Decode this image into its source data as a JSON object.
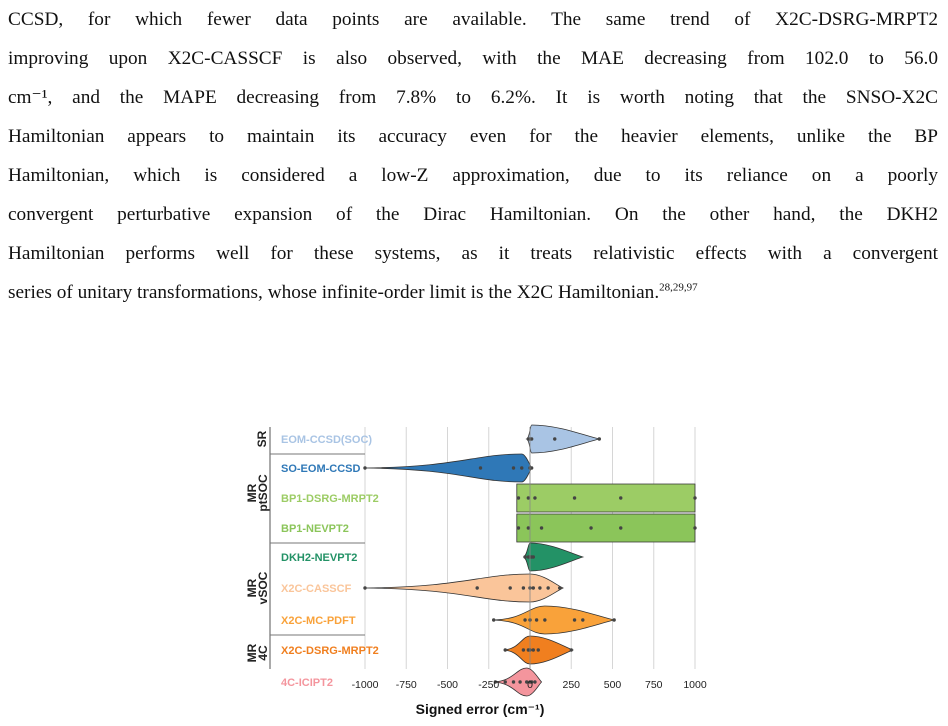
{
  "paragraph": {
    "lines": [
      "CCSD, for which fewer data points are available. The same trend of X2C-DSRG-MRPT2",
      "improving upon X2C-CASSCF is also observed, with the MAE decreasing from 102.0 to 56.0",
      "cm⁻¹, and the MAPE decreasing from 7.8% to 6.2%. It is worth noting that the SNSO-X2C",
      "Hamiltonian appears to maintain its accuracy even for the heavier elements, unlike the BP",
      "Hamiltonian, which is considered a low-Z approximation, due to its reliance on a poorly",
      "convergent perturbative expansion of the Dirac Hamiltonian. On the other hand, the DKH2",
      "Hamiltonian performs well for these systems, as it treats relativistic effects with a convergent",
      "series of unitary transformations, whose infinite-order limit is the X2C Hamiltonian."
    ],
    "last_line_refs": "28,29,97"
  },
  "chart_data": {
    "type": "violin",
    "orientation": "horizontal",
    "xlabel": "Signed error (cm⁻¹)",
    "xlim": [
      -1000,
      1000
    ],
    "xticks": [
      "-1000",
      "-750",
      "-500",
      "-250",
      "0",
      "250",
      "500",
      "750",
      "1000"
    ],
    "grid": true,
    "groups": [
      {
        "label": "SR",
        "methods": [
          "EOM-CCSD(SOC)",
          "SO-EOM-CCSD"
        ]
      },
      {
        "label": "MR ptSOC",
        "methods": [
          "BP1-DSRG-MRPT2",
          "BP1-NEVPT2",
          "DKH2-NEVPT2"
        ]
      },
      {
        "label": "MR vSOC",
        "methods": [
          "X2C-CASSCF",
          "X2C-MC-PDFT",
          "X2C-DSRG-MRPT2"
        ]
      },
      {
        "label": "MR 4C",
        "methods": [
          "4C-ICIPT2"
        ]
      }
    ],
    "series": [
      {
        "name": "EOM-CCSD(SOC)",
        "color": "#a9c4e4",
        "min": -20,
        "max": 420,
        "points": [
          -10,
          0,
          10,
          150,
          420
        ]
      },
      {
        "name": "SO-EOM-CCSD",
        "color": "#2f78b7",
        "min": -1000,
        "max": 10,
        "points": [
          -1000,
          -300,
          -100,
          -50,
          0,
          10
        ]
      },
      {
        "name": "BP1-DSRG-MRPT2",
        "color": "#9ccc65",
        "min": -80,
        "max": 1000,
        "points": [
          -70,
          -10,
          30,
          270,
          550,
          1000
        ]
      },
      {
        "name": "BP1-NEVPT2",
        "color": "#8bc55a",
        "min": -80,
        "max": 1000,
        "points": [
          -70,
          -10,
          70,
          370,
          550,
          1000
        ]
      },
      {
        "name": "DKH2-NEVPT2",
        "color": "#239266",
        "min": -40,
        "max": 320,
        "points": [
          -30,
          -10,
          0,
          10,
          20
        ]
      },
      {
        "name": "X2C-CASSCF",
        "color": "#fac59a",
        "min": -1000,
        "max": 200,
        "points": [
          -1000,
          -320,
          -120,
          -40,
          0,
          20,
          60,
          110,
          180
        ]
      },
      {
        "name": "X2C-MC-PDFT",
        "color": "#f9a23a",
        "min": -220,
        "max": 510,
        "points": [
          -220,
          -30,
          0,
          40,
          90,
          270,
          320,
          510
        ]
      },
      {
        "name": "X2C-DSRG-MRPT2",
        "color": "#f07f1f",
        "min": -160,
        "max": 260,
        "points": [
          -150,
          -40,
          -10,
          0,
          20,
          50,
          250
        ]
      },
      {
        "name": "4C-ICIPT2",
        "color": "#f4959d",
        "min": -220,
        "max": 70,
        "points": [
          -210,
          -150,
          -100,
          -60,
          -20,
          0,
          10,
          30
        ]
      }
    ]
  }
}
